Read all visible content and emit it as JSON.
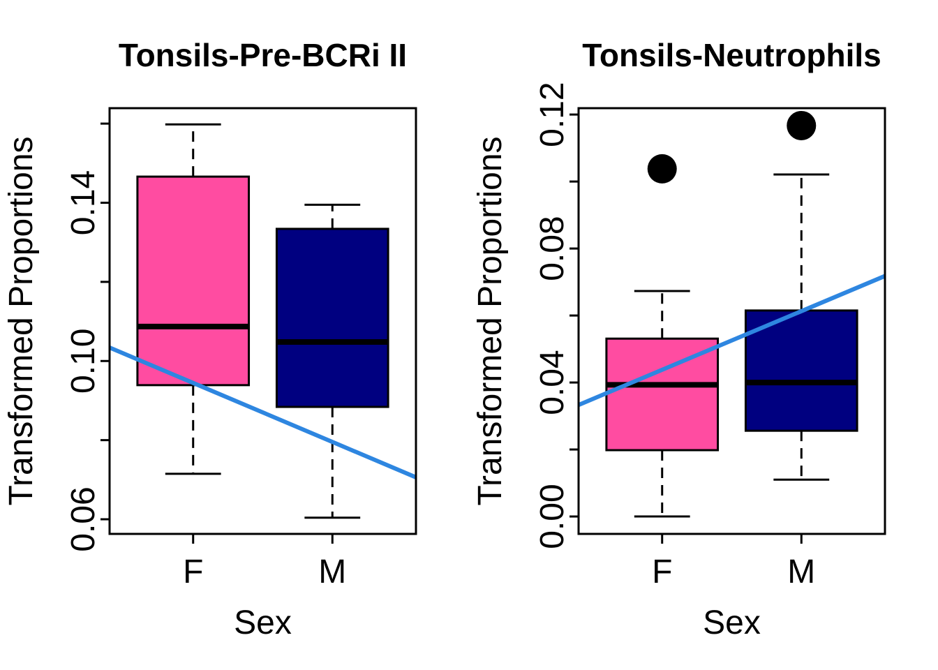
{
  "figure": {
    "background": "#ffffff",
    "shared_ylabel": "Transformed Proportions",
    "shared_xlabel": "Sex",
    "colors": {
      "female_box": "#FF4CA1",
      "male_box": "#000080",
      "trend_line": "#2E86E0",
      "outlier": "#000000",
      "axis": "#000000"
    }
  },
  "chart_data": [
    {
      "type": "boxplot",
      "title": "Tonsils-Pre-BCRi II",
      "xlabel": "Sex",
      "ylabel": "Transformed Proportions",
      "categories": [
        "F",
        "M"
      ],
      "ylim": [
        0.0563,
        0.1639
      ],
      "yticks": [
        0.06,
        0.08,
        0.1,
        0.12,
        0.14,
        0.16
      ],
      "ytick_labels": [
        "0.06",
        "",
        "0.10",
        "",
        "0.14",
        ""
      ],
      "grid": false,
      "boxes": [
        {
          "category": "F",
          "color": "#FF4CA1",
          "whisker_low": 0.0715,
          "q1": 0.0939,
          "median": 0.1087,
          "q3": 0.1466,
          "whisker_high": 0.1598,
          "outliers": []
        },
        {
          "category": "M",
          "color": "#000080",
          "whisker_low": 0.0604,
          "q1": 0.0884,
          "median": 0.1048,
          "q3": 0.1334,
          "whisker_high": 0.1395,
          "outliers": []
        }
      ],
      "trend_line": {
        "color": "#2E86E0",
        "y_at_left": 0.1034,
        "y_at_right": 0.0706
      }
    },
    {
      "type": "boxplot",
      "title": "Tonsils-Neutrophils",
      "xlabel": "Sex",
      "ylabel": "Transformed Proportions",
      "categories": [
        "F",
        "M"
      ],
      "ylim": [
        -0.0052,
        0.1219
      ],
      "yticks": [
        0.0,
        0.02,
        0.04,
        0.06,
        0.08,
        0.1,
        0.12
      ],
      "ytick_labels": [
        "0.00",
        "",
        "0.04",
        "",
        "0.08",
        "",
        "0.12"
      ],
      "grid": false,
      "boxes": [
        {
          "category": "F",
          "color": "#FF4CA1",
          "whisker_low": 0.0,
          "q1": 0.0198,
          "median": 0.0393,
          "q3": 0.0531,
          "whisker_high": 0.0673,
          "outliers": [
            0.1038
          ]
        },
        {
          "category": "M",
          "color": "#000080",
          "whisker_low": 0.011,
          "q1": 0.0256,
          "median": 0.04,
          "q3": 0.0615,
          "whisker_high": 0.1021,
          "outliers": [
            0.1167
          ]
        }
      ],
      "trend_line": {
        "color": "#2E86E0",
        "y_at_left": 0.0333,
        "y_at_right": 0.0718
      }
    }
  ]
}
